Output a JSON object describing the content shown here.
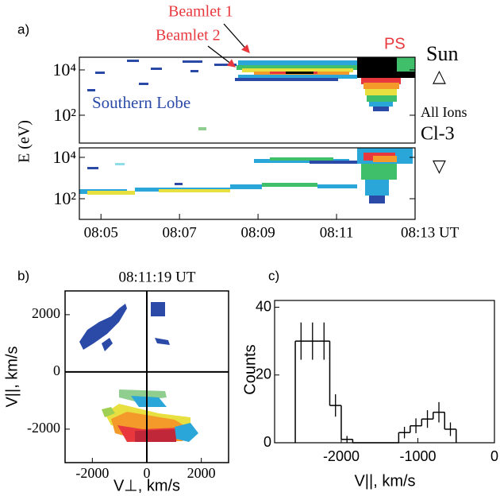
{
  "chart_data": [
    {
      "type": "spectrogram",
      "panel_label": "a)",
      "ylabel": "E (eV)",
      "annotations": [
        "Beamlet 1",
        "Beamlet 2",
        "PS",
        "Southern Lobe"
      ],
      "right_labels": [
        "Sun",
        "△",
        "All Ions",
        "Cl-3"
      ],
      "log_y": true,
      "ylim": [
        5.9,
        36300
      ],
      "yticks": [
        {
          "value": 100,
          "label": "10²"
        },
        {
          "value": 10000,
          "label": "10⁴"
        }
      ],
      "xlim": [
        484.45,
        493
      ]
    },
    {
      "type": "spectrogram",
      "right_labels": [
        "▽"
      ],
      "log_y": true,
      "ylim": [
        10,
        28800
      ],
      "yticks": [
        {
          "value": 100,
          "label": "10²"
        },
        {
          "value": 10000,
          "label": "10⁴"
        }
      ],
      "xlim": [
        484.45,
        493
      ],
      "xticks": [
        {
          "value": 485,
          "label": "08:05"
        },
        {
          "value": 487,
          "label": "08:07"
        },
        {
          "value": 489,
          "label": "08:09"
        },
        {
          "value": 491,
          "label": "08:11"
        },
        {
          "value": 493,
          "label": "08:13 UT"
        }
      ]
    },
    {
      "type": "distribution",
      "panel_label": "b)",
      "title": "08:11:19 UT",
      "xlabel": "V⊥, km/s",
      "ylabel": "V||,  km/s",
      "xlim": [
        -3000,
        3000
      ],
      "ylim": [
        -3170,
        2830
      ],
      "xticks": [
        -2000,
        0,
        2000
      ],
      "yticks": [
        -2000,
        0,
        2000
      ]
    },
    {
      "type": "histogram",
      "panel_label": "c)",
      "xlabel": "V||, km/s",
      "ylabel": "Counts",
      "color": "#000000",
      "bins": [
        -2600,
        -2450,
        -2300,
        -2150,
        -2000,
        -1850,
        -1700,
        -1550,
        -1400,
        -1250,
        -1100,
        -950,
        -800,
        -650,
        -500
      ],
      "values": [
        30,
        30,
        30,
        11,
        1,
        0,
        0,
        0,
        0,
        3,
        5,
        7,
        9,
        4
      ],
      "errors": [
        5.5,
        5.5,
        5.5,
        3.3,
        1,
        0,
        0,
        0,
        0,
        1.7,
        2.2,
        2.6,
        3,
        2
      ],
      "xlim": [
        -2870,
        0
      ],
      "ylim": [
        0,
        42
      ],
      "xticks": [
        -2000,
        -1000,
        0
      ],
      "yticks": [
        0,
        20,
        40
      ]
    }
  ]
}
